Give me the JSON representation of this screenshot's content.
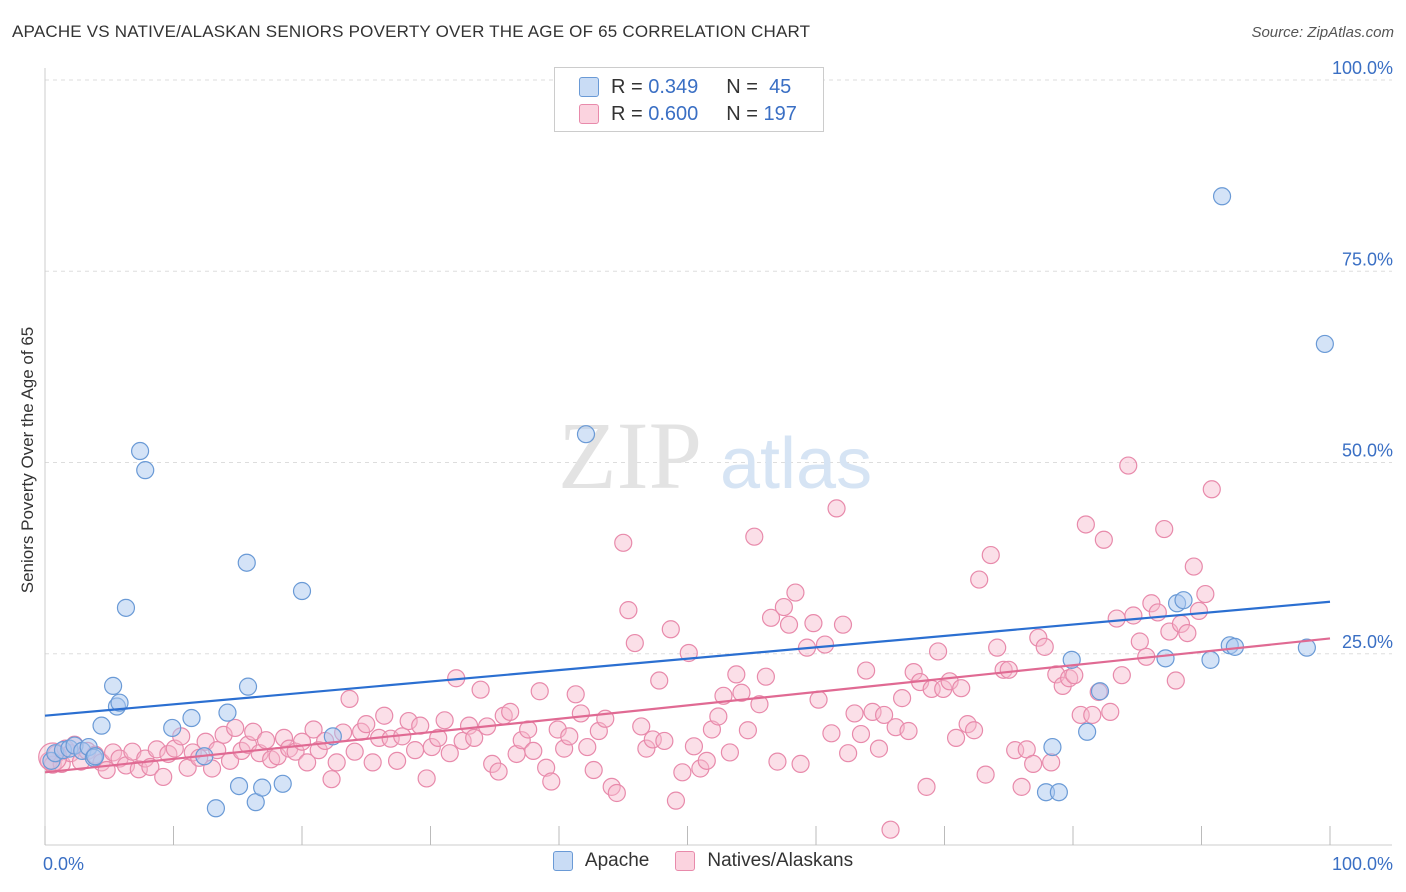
{
  "title": "APACHE VS NATIVE/ALASKAN SENIORS POVERTY OVER THE AGE OF 65 CORRELATION CHART",
  "source": "Source: ZipAtlas.com",
  "watermark": {
    "zip": "ZIP",
    "atlas": "atlas"
  },
  "legend": {
    "r_label": "R =",
    "n_label": "N =",
    "apache": {
      "r": "0.349",
      "n": "45"
    },
    "natives": {
      "r": "0.600",
      "n": "197"
    }
  },
  "colors": {
    "apache_fill": "#a9c8f0",
    "apache_stroke": "#6a9ad6",
    "apache_line": "#2b6fd1",
    "natives_fill": "#f7b8cc",
    "natives_stroke": "#e88aab",
    "natives_line": "#e06a93",
    "tick_label": "#3a6fc4",
    "grid": "#dddddd"
  },
  "chart_data": {
    "type": "scatter",
    "title": "APACHE VS NATIVE/ALASKAN SENIORS POVERTY OVER THE AGE OF 65 CORRELATION CHART",
    "xlabel": "",
    "ylabel": "Seniors Poverty Over the Age of 65",
    "xlim": [
      0,
      100
    ],
    "ylim": [
      0,
      100
    ],
    "x_tick_labels": [
      "0.0%",
      "100.0%"
    ],
    "y_ticks": [
      25,
      50,
      75,
      100
    ],
    "y_tick_labels": [
      "25.0%",
      "50.0%",
      "75.0%",
      "100.0%"
    ],
    "grid": true,
    "series": [
      {
        "name": "Apache",
        "r": 0.349,
        "n": 45,
        "trend": [
          [
            0,
            16.9
          ],
          [
            100,
            31.8
          ]
        ],
        "points": [
          [
            0.5,
            11.0
          ],
          [
            0.8,
            12.0
          ],
          [
            1.4,
            12.4
          ],
          [
            1.9,
            12.6
          ],
          [
            2.3,
            13.0
          ],
          [
            2.9,
            12.3
          ],
          [
            3.4,
            12.8
          ],
          [
            3.8,
            11.4
          ],
          [
            3.9,
            11.6
          ],
          [
            4.4,
            15.6
          ],
          [
            5.3,
            20.8
          ],
          [
            5.6,
            18.1
          ],
          [
            5.8,
            18.6
          ],
          [
            6.3,
            31.0
          ],
          [
            7.4,
            51.5
          ],
          [
            7.8,
            49.0
          ],
          [
            9.9,
            15.3
          ],
          [
            11.4,
            16.6
          ],
          [
            12.4,
            11.6
          ],
          [
            13.3,
            4.8
          ],
          [
            14.2,
            17.3
          ],
          [
            15.1,
            7.7
          ],
          [
            15.7,
            36.9
          ],
          [
            15.8,
            20.7
          ],
          [
            16.4,
            5.6
          ],
          [
            16.9,
            7.5
          ],
          [
            18.5,
            8.0
          ],
          [
            20.0,
            33.2
          ],
          [
            22.4,
            14.2
          ],
          [
            42.1,
            53.7
          ],
          [
            77.9,
            6.9
          ],
          [
            78.4,
            12.8
          ],
          [
            78.9,
            6.9
          ],
          [
            79.9,
            24.2
          ],
          [
            81.1,
            14.8
          ],
          [
            82.1,
            20.1
          ],
          [
            87.2,
            24.4
          ],
          [
            88.1,
            31.6
          ],
          [
            88.6,
            32.0
          ],
          [
            90.7,
            24.2
          ],
          [
            91.6,
            84.8
          ],
          [
            92.2,
            26.1
          ],
          [
            92.6,
            25.9
          ],
          [
            98.2,
            25.8
          ],
          [
            99.6,
            65.5
          ]
        ]
      },
      {
        "name": "Natives/Alaskans",
        "r": 0.6,
        "n": 197,
        "trend": [
          [
            0,
            9.5
          ],
          [
            100,
            27.0
          ]
        ],
        "points": [
          [
            0.3,
            11.0
          ],
          [
            0.6,
            10.5
          ],
          [
            0.9,
            11.9
          ],
          [
            1.3,
            10.6
          ],
          [
            1.6,
            12.6
          ],
          [
            2.0,
            12.0
          ],
          [
            2.3,
            13.1
          ],
          [
            2.8,
            10.9
          ],
          [
            3.3,
            12.3
          ],
          [
            3.9,
            11.8
          ],
          [
            4.4,
            10.8
          ],
          [
            4.8,
            9.8
          ],
          [
            5.3,
            12.1
          ],
          [
            5.8,
            11.3
          ],
          [
            6.3,
            10.4
          ],
          [
            6.8,
            12.2
          ],
          [
            7.3,
            9.9
          ],
          [
            7.8,
            11.3
          ],
          [
            8.2,
            10.2
          ],
          [
            8.7,
            12.5
          ],
          [
            9.2,
            8.9
          ],
          [
            9.6,
            11.9
          ],
          [
            10.1,
            12.6
          ],
          [
            10.6,
            14.2
          ],
          [
            11.1,
            10.1
          ],
          [
            11.5,
            12.1
          ],
          [
            12.0,
            11.4
          ],
          [
            12.5,
            13.5
          ],
          [
            13.0,
            10.0
          ],
          [
            13.4,
            12.4
          ],
          [
            13.9,
            14.4
          ],
          [
            14.4,
            11.0
          ],
          [
            14.8,
            15.3
          ],
          [
            15.3,
            12.3
          ],
          [
            15.8,
            13.1
          ],
          [
            16.2,
            14.8
          ],
          [
            16.7,
            12.0
          ],
          [
            17.2,
            13.7
          ],
          [
            17.6,
            11.2
          ],
          [
            18.1,
            11.6
          ],
          [
            18.6,
            14.0
          ],
          [
            19.0,
            12.6
          ],
          [
            19.5,
            12.2
          ],
          [
            20.0,
            13.5
          ],
          [
            20.4,
            10.8
          ],
          [
            20.9,
            15.1
          ],
          [
            21.3,
            12.4
          ],
          [
            21.8,
            13.6
          ],
          [
            22.3,
            8.6
          ],
          [
            22.7,
            10.8
          ],
          [
            23.2,
            14.7
          ],
          [
            23.7,
            19.1
          ],
          [
            24.1,
            12.2
          ],
          [
            24.6,
            14.8
          ],
          [
            25.0,
            15.8
          ],
          [
            25.5,
            10.8
          ],
          [
            26.0,
            14.0
          ],
          [
            26.4,
            16.9
          ],
          [
            26.9,
            13.9
          ],
          [
            27.4,
            11.0
          ],
          [
            27.8,
            14.2
          ],
          [
            28.3,
            16.2
          ],
          [
            28.8,
            12.4
          ],
          [
            29.2,
            15.6
          ],
          [
            29.7,
            8.7
          ],
          [
            30.1,
            12.8
          ],
          [
            30.6,
            14.0
          ],
          [
            31.1,
            16.3
          ],
          [
            31.5,
            12.0
          ],
          [
            32.0,
            21.8
          ],
          [
            32.5,
            13.6
          ],
          [
            33.0,
            15.6
          ],
          [
            33.4,
            14.0
          ],
          [
            33.9,
            20.3
          ],
          [
            34.4,
            15.5
          ],
          [
            34.8,
            10.6
          ],
          [
            35.3,
            9.6
          ],
          [
            35.7,
            16.9
          ],
          [
            36.2,
            17.4
          ],
          [
            36.7,
            11.9
          ],
          [
            37.1,
            13.7
          ],
          [
            37.6,
            15.1
          ],
          [
            38.0,
            12.3
          ],
          [
            38.5,
            20.1
          ],
          [
            39.0,
            10.1
          ],
          [
            39.4,
            8.3
          ],
          [
            39.9,
            15.1
          ],
          [
            40.4,
            12.6
          ],
          [
            40.8,
            14.2
          ],
          [
            41.3,
            19.7
          ],
          [
            41.7,
            17.2
          ],
          [
            42.2,
            12.8
          ],
          [
            42.7,
            9.8
          ],
          [
            43.1,
            14.9
          ],
          [
            43.6,
            16.5
          ],
          [
            44.1,
            7.6
          ],
          [
            44.5,
            6.8
          ],
          [
            45.0,
            39.5
          ],
          [
            45.4,
            30.7
          ],
          [
            45.9,
            26.4
          ],
          [
            46.4,
            15.5
          ],
          [
            46.8,
            12.6
          ],
          [
            47.3,
            13.8
          ],
          [
            47.8,
            21.5
          ],
          [
            48.2,
            13.6
          ],
          [
            48.7,
            28.2
          ],
          [
            49.1,
            5.8
          ],
          [
            49.6,
            9.5
          ],
          [
            50.1,
            25.1
          ],
          [
            50.5,
            12.9
          ],
          [
            51.0,
            10.0
          ],
          [
            51.5,
            11.0
          ],
          [
            51.9,
            15.1
          ],
          [
            52.4,
            16.8
          ],
          [
            52.8,
            19.5
          ],
          [
            53.3,
            12.1
          ],
          [
            53.8,
            22.3
          ],
          [
            54.2,
            19.9
          ],
          [
            54.7,
            15.0
          ],
          [
            55.2,
            40.3
          ],
          [
            55.6,
            18.4
          ],
          [
            56.1,
            22.0
          ],
          [
            56.5,
            29.7
          ],
          [
            57.0,
            10.9
          ],
          [
            57.5,
            31.1
          ],
          [
            57.9,
            28.8
          ],
          [
            58.4,
            33.0
          ],
          [
            58.8,
            10.6
          ],
          [
            59.3,
            25.8
          ],
          [
            59.8,
            29.0
          ],
          [
            60.2,
            19.0
          ],
          [
            60.7,
            26.2
          ],
          [
            61.2,
            14.6
          ],
          [
            61.6,
            44.0
          ],
          [
            62.1,
            28.8
          ],
          [
            62.5,
            12.0
          ],
          [
            63.0,
            17.2
          ],
          [
            63.5,
            14.5
          ],
          [
            63.9,
            22.8
          ],
          [
            64.4,
            17.4
          ],
          [
            64.9,
            12.6
          ],
          [
            65.3,
            17.0
          ],
          [
            65.8,
            2.0
          ],
          [
            66.2,
            15.4
          ],
          [
            66.7,
            19.2
          ],
          [
            67.2,
            14.9
          ],
          [
            67.6,
            22.6
          ],
          [
            68.1,
            21.3
          ],
          [
            68.6,
            7.6
          ],
          [
            69.0,
            20.4
          ],
          [
            69.5,
            25.3
          ],
          [
            69.9,
            20.4
          ],
          [
            70.4,
            21.4
          ],
          [
            70.9,
            14.0
          ],
          [
            71.3,
            20.5
          ],
          [
            71.8,
            15.8
          ],
          [
            72.3,
            15.0
          ],
          [
            72.7,
            34.7
          ],
          [
            73.2,
            9.2
          ],
          [
            73.6,
            37.9
          ],
          [
            74.1,
            25.8
          ],
          [
            74.6,
            22.9
          ],
          [
            75.0,
            22.9
          ],
          [
            75.5,
            12.4
          ],
          [
            76.0,
            7.6
          ],
          [
            76.4,
            12.5
          ],
          [
            76.9,
            10.6
          ],
          [
            77.3,
            27.1
          ],
          [
            77.8,
            25.9
          ],
          [
            78.3,
            10.8
          ],
          [
            78.7,
            22.3
          ],
          [
            79.2,
            20.8
          ],
          [
            79.7,
            21.8
          ],
          [
            80.1,
            22.2
          ],
          [
            80.6,
            17.0
          ],
          [
            81.0,
            41.9
          ],
          [
            81.5,
            17.0
          ],
          [
            82.0,
            20.0
          ],
          [
            82.4,
            39.9
          ],
          [
            82.9,
            17.4
          ],
          [
            83.4,
            29.6
          ],
          [
            83.8,
            22.2
          ],
          [
            84.3,
            49.6
          ],
          [
            84.7,
            30.0
          ],
          [
            85.2,
            26.6
          ],
          [
            85.7,
            24.6
          ],
          [
            86.1,
            31.6
          ],
          [
            86.6,
            30.4
          ],
          [
            87.1,
            41.3
          ],
          [
            87.5,
            27.9
          ],
          [
            88.0,
            21.5
          ],
          [
            88.4,
            28.9
          ],
          [
            88.9,
            27.7
          ],
          [
            89.4,
            36.4
          ],
          [
            89.8,
            30.6
          ],
          [
            90.3,
            32.8
          ],
          [
            90.8,
            46.5
          ]
        ]
      }
    ]
  },
  "bottom_legend": [
    "Apache",
    "Natives/Alaskans"
  ]
}
